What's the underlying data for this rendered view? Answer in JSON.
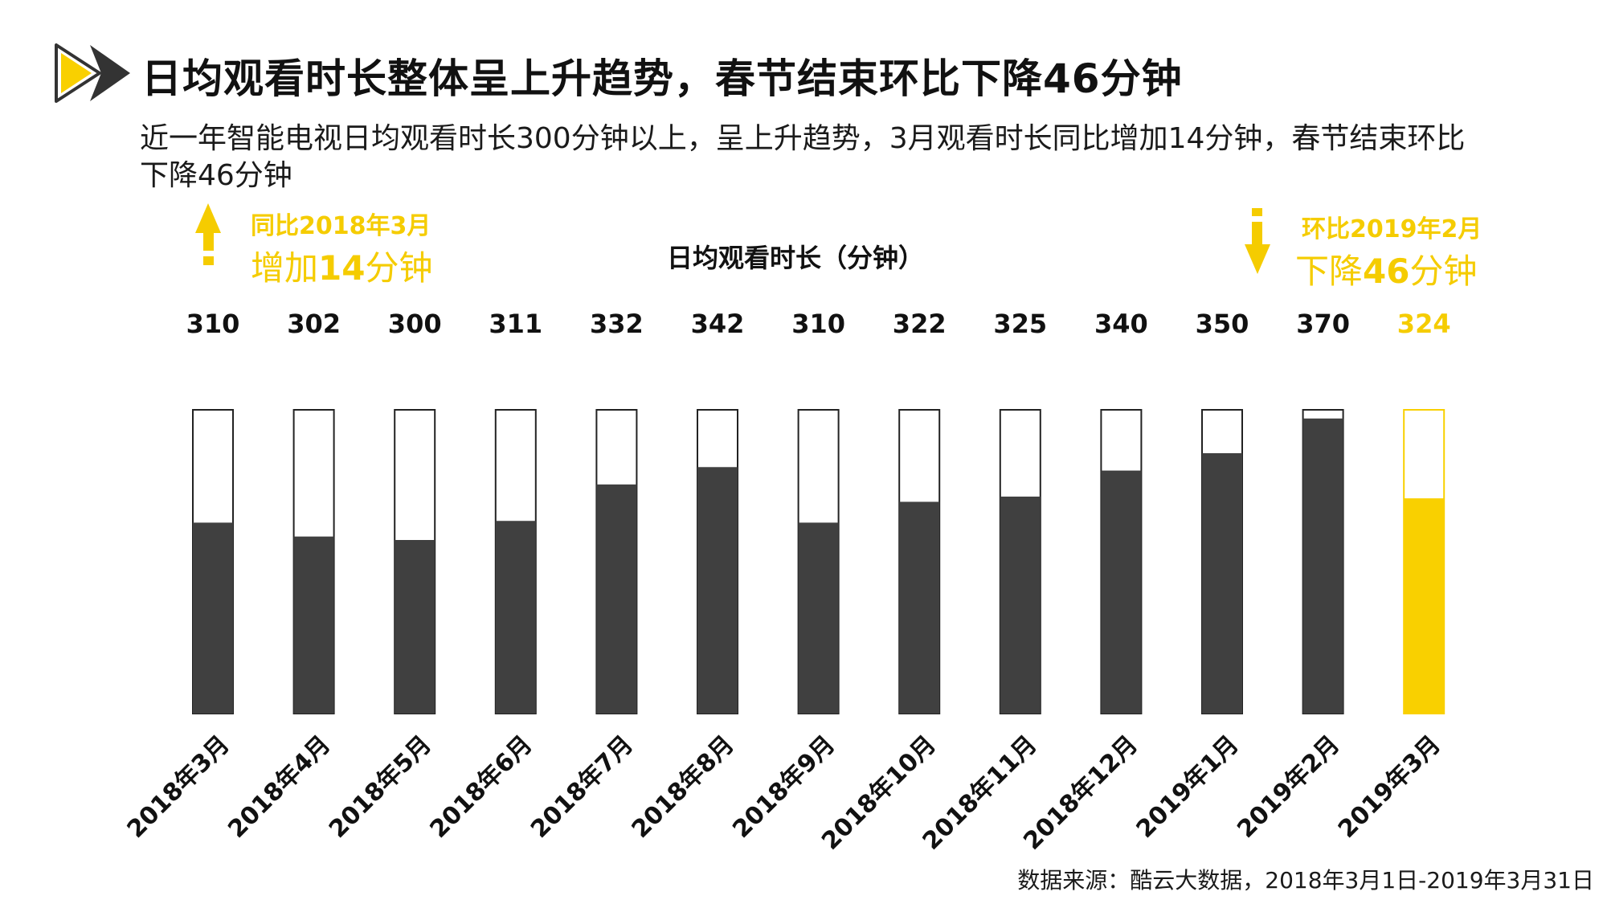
{
  "page": {
    "title": "日均观看时长整体呈上升趋势，春节结束环比下降46分钟",
    "subtitle": "近一年智能电视日均观看时长300分钟以上，呈上升趋势，3月观看时长同比增加14分钟，春节结束环比下降46分钟",
    "source": "数据来源：酷云大数据，2018年3月1日-2019年3月31日"
  },
  "callouts": {
    "left": {
      "line1": "同比2018年3月",
      "prefix": "增加",
      "num": "14",
      "suffix": "分钟",
      "icon": "arrow-up-icon"
    },
    "right": {
      "line1": "环比2019年2月",
      "prefix": "下降",
      "num": "46",
      "suffix": "分钟",
      "icon": "arrow-down-icon"
    }
  },
  "colors": {
    "bar": "#404040",
    "highlight": "#f9d000",
    "accent_text": "#f5cc00",
    "outline": "#222222"
  },
  "chart_data": {
    "type": "bar",
    "title": "日均观看时长（分钟）",
    "categories": [
      "2018年3月",
      "2018年4月",
      "2018年5月",
      "2018年6月",
      "2018年7月",
      "2018年8月",
      "2018年9月",
      "2018年10月",
      "2018年11月",
      "2018年12月",
      "2019年1月",
      "2019年2月",
      "2019年3月"
    ],
    "values": [
      310,
      302,
      300,
      311,
      332,
      342,
      310,
      322,
      325,
      340,
      350,
      370,
      324
    ],
    "highlight_index": 12,
    "ylim": [
      200,
      375
    ],
    "grid": false,
    "legend": "none"
  }
}
